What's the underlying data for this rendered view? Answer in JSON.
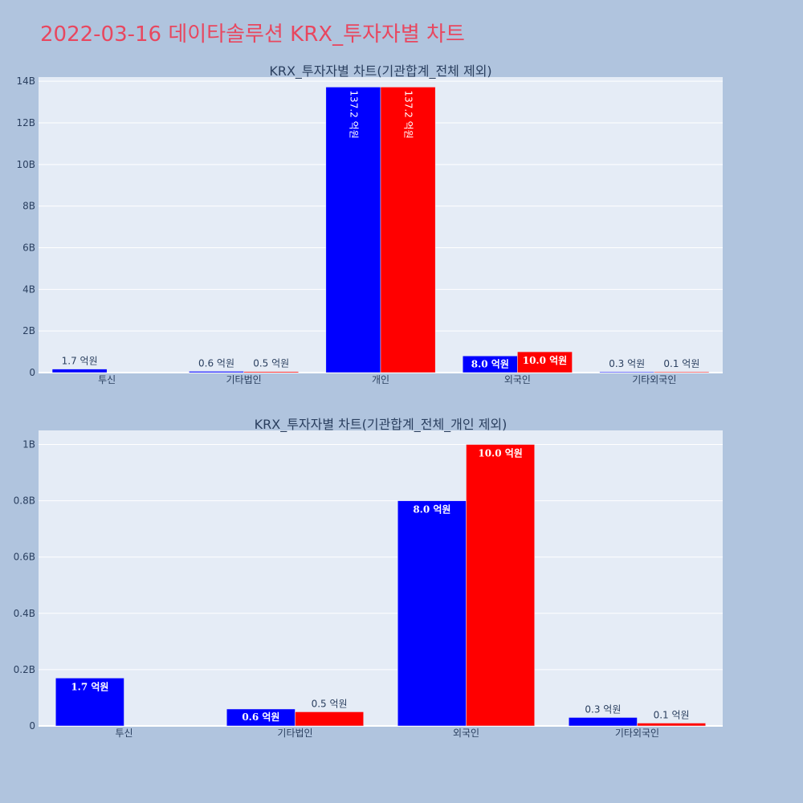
{
  "page_title": "2022-03-16 데이타솔루션 KRX_투자자별 차트",
  "colors": {
    "title": "#e8475f",
    "background": "#b0c4de",
    "plot_bg": "#e5ecf6",
    "buy": "#0000ff",
    "sell": "#ff0000"
  },
  "chart_data": [
    {
      "type": "bar",
      "title": "KRX_투자자별 차트(기관합계_전체 제외)",
      "categories": [
        "투신",
        "기타법인",
        "개인",
        "외국인",
        "기타외국인"
      ],
      "ylim": [
        0,
        14.2
      ],
      "y_unit": "B",
      "yticks": [
        0,
        2,
        4,
        6,
        8,
        10,
        12,
        14
      ],
      "ytick_labels": [
        "0",
        "2B",
        "4B",
        "6B",
        "8B",
        "10B",
        "12B",
        "14B"
      ],
      "grid": true,
      "series": [
        {
          "values": [
            0.17,
            0.06,
            13.72,
            0.8,
            0.03
          ],
          "labels": [
            "1.7 억원",
            "0.6 억원",
            "137.2 억원",
            "8.0 억원",
            "0.3 억원"
          ],
          "color": "#0000ff"
        },
        {
          "values": [
            0,
            0.05,
            13.72,
            1.0,
            0.01
          ],
          "labels": [
            "",
            "0.5 억원",
            "137.2 억원",
            "10.0 억원",
            "0.1 억원"
          ],
          "color": "#ff0000"
        }
      ]
    },
    {
      "type": "bar",
      "title": "KRX_투자자별 차트(기관합계_전체_개인 제외)",
      "categories": [
        "투신",
        "기타법인",
        "외국인",
        "기타외국인"
      ],
      "ylim": [
        0,
        1.05
      ],
      "y_unit": "B",
      "yticks": [
        0,
        0.2,
        0.4,
        0.6,
        0.8,
        1.0
      ],
      "ytick_labels": [
        "0",
        "0.2B",
        "0.4B",
        "0.6B",
        "0.8B",
        "1B"
      ],
      "grid": true,
      "series": [
        {
          "values": [
            0.17,
            0.06,
            0.8,
            0.03
          ],
          "labels": [
            "1.7 억원",
            "0.6 억원",
            "8.0 억원",
            "0.3 억원"
          ],
          "color": "#0000ff"
        },
        {
          "values": [
            0,
            0.05,
            1.0,
            0.01
          ],
          "labels": [
            "",
            "0.5 억원",
            "10.0 억원",
            "0.1 억원"
          ],
          "color": "#ff0000"
        }
      ]
    }
  ]
}
